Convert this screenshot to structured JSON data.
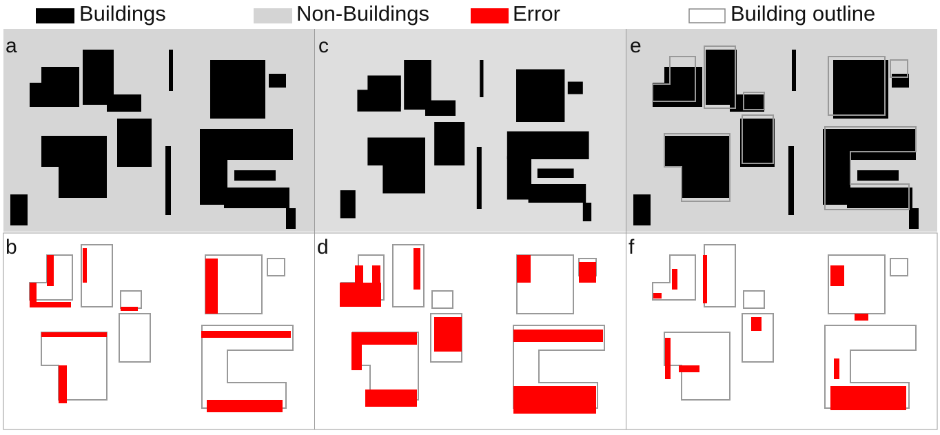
{
  "legend": [
    {
      "label": "Buildings"
    },
    {
      "label": "Non-Buildings"
    },
    {
      "label": "Error"
    },
    {
      "label": "Building outline"
    }
  ],
  "panels": [
    {
      "label": "a"
    },
    {
      "label": "b"
    },
    {
      "label": "c"
    },
    {
      "label": "d"
    },
    {
      "label": "e"
    },
    {
      "label": "f"
    }
  ]
}
